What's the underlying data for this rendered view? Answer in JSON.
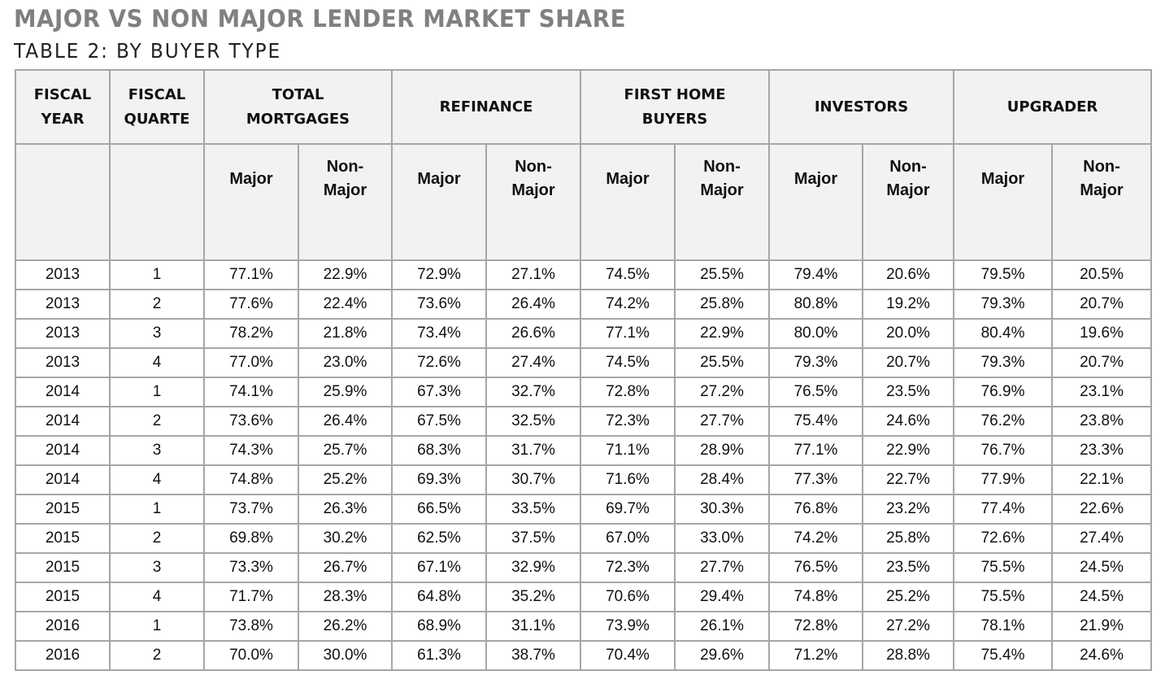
{
  "title": "MAJOR VS NON MAJOR LENDER MARKET SHARE",
  "subtitle": "TABLE 2: BY BUYER TYPE",
  "headers": {
    "fiscal_year": [
      "FISCAL",
      "YEAR"
    ],
    "fiscal_quarter": [
      "FISCAL",
      "QUARTE"
    ],
    "groups": [
      [
        "TOTAL",
        "MORTGAGES"
      ],
      [
        "REFINANCE"
      ],
      [
        "FIRST HOME",
        "BUYERS"
      ],
      [
        "INVESTORS"
      ],
      [
        "UPGRADER"
      ]
    ],
    "major": "Major",
    "non_major": [
      "Non-",
      "Major"
    ]
  },
  "rows": [
    [
      "2013",
      "1",
      "77.1%",
      "22.9%",
      "72.9%",
      "27.1%",
      "74.5%",
      "25.5%",
      "79.4%",
      "20.6%",
      "79.5%",
      "20.5%"
    ],
    [
      "2013",
      "2",
      "77.6%",
      "22.4%",
      "73.6%",
      "26.4%",
      "74.2%",
      "25.8%",
      "80.8%",
      "19.2%",
      "79.3%",
      "20.7%"
    ],
    [
      "2013",
      "3",
      "78.2%",
      "21.8%",
      "73.4%",
      "26.6%",
      "77.1%",
      "22.9%",
      "80.0%",
      "20.0%",
      "80.4%",
      "19.6%"
    ],
    [
      "2013",
      "4",
      "77.0%",
      "23.0%",
      "72.6%",
      "27.4%",
      "74.5%",
      "25.5%",
      "79.3%",
      "20.7%",
      "79.3%",
      "20.7%"
    ],
    [
      "2014",
      "1",
      "74.1%",
      "25.9%",
      "67.3%",
      "32.7%",
      "72.8%",
      "27.2%",
      "76.5%",
      "23.5%",
      "76.9%",
      "23.1%"
    ],
    [
      "2014",
      "2",
      "73.6%",
      "26.4%",
      "67.5%",
      "32.5%",
      "72.3%",
      "27.7%",
      "75.4%",
      "24.6%",
      "76.2%",
      "23.8%"
    ],
    [
      "2014",
      "3",
      "74.3%",
      "25.7%",
      "68.3%",
      "31.7%",
      "71.1%",
      "28.9%",
      "77.1%",
      "22.9%",
      "76.7%",
      "23.3%"
    ],
    [
      "2014",
      "4",
      "74.8%",
      "25.2%",
      "69.3%",
      "30.7%",
      "71.6%",
      "28.4%",
      "77.3%",
      "22.7%",
      "77.9%",
      "22.1%"
    ],
    [
      "2015",
      "1",
      "73.7%",
      "26.3%",
      "66.5%",
      "33.5%",
      "69.7%",
      "30.3%",
      "76.8%",
      "23.2%",
      "77.4%",
      "22.6%"
    ],
    [
      "2015",
      "2",
      "69.8%",
      "30.2%",
      "62.5%",
      "37.5%",
      "67.0%",
      "33.0%",
      "74.2%",
      "25.8%",
      "72.6%",
      "27.4%"
    ],
    [
      "2015",
      "3",
      "73.3%",
      "26.7%",
      "67.1%",
      "32.9%",
      "72.3%",
      "27.7%",
      "76.5%",
      "23.5%",
      "75.5%",
      "24.5%"
    ],
    [
      "2015",
      "4",
      "71.7%",
      "28.3%",
      "64.8%",
      "35.2%",
      "70.6%",
      "29.4%",
      "74.8%",
      "25.2%",
      "75.5%",
      "24.5%"
    ],
    [
      "2016",
      "1",
      "73.8%",
      "26.2%",
      "68.9%",
      "31.1%",
      "73.9%",
      "26.1%",
      "72.8%",
      "27.2%",
      "78.1%",
      "21.9%"
    ],
    [
      "2016",
      "2",
      "70.0%",
      "30.0%",
      "61.3%",
      "38.7%",
      "70.4%",
      "29.6%",
      "71.2%",
      "28.8%",
      "75.4%",
      "24.6%"
    ]
  ]
}
